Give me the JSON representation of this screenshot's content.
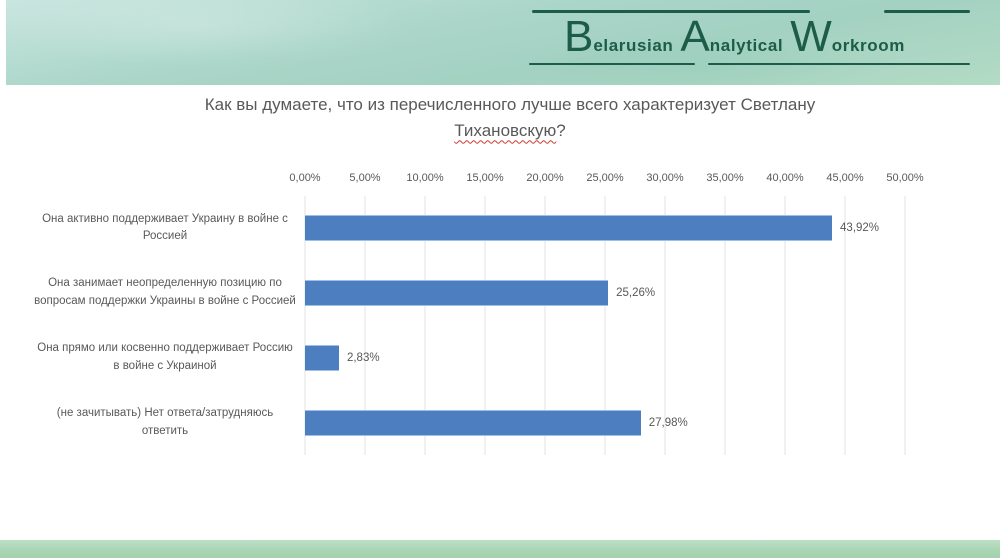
{
  "logo": {
    "words": [
      {
        "initial": "B",
        "rest": "elarusian"
      },
      {
        "initial": "A",
        "rest": "nalytical"
      },
      {
        "initial": "W",
        "rest": "orkroom"
      }
    ],
    "color": "#1c5c49"
  },
  "title": {
    "line1": "Как вы думаете, что из перечисленного лучше всего характеризует Светлану",
    "misspelled_word": "Тихановскую",
    "suffix": "?"
  },
  "chart_data": {
    "type": "bar",
    "orientation": "horizontal",
    "title": "Как вы думаете, что из перечисленного лучше всего характеризует Светлану Тихановскую?",
    "categories": [
      "Она активно поддерживает Украину в войне с Россией",
      "Она занимает неопределенную позицию по вопросам поддержки Украины в войне с Россией",
      "Она прямо или косвенно поддерживает Россию в войне с Украиной",
      "(не зачитывать) Нет ответа/затрудняюсь ответить"
    ],
    "values": [
      43.92,
      25.26,
      2.83,
      27.98
    ],
    "value_labels": [
      "43,92%",
      "25,26%",
      "2,83%",
      "27,98%"
    ],
    "x_ticks": [
      "0,00%",
      "5,00%",
      "10,00%",
      "15,00%",
      "20,00%",
      "25,00%",
      "30,00%",
      "35,00%",
      "40,00%",
      "45,00%",
      "50,00%"
    ],
    "xlim": [
      0,
      50
    ],
    "grid": true,
    "legend": false,
    "bar_color": "#4d7ebf",
    "axis_text_color": "#595959"
  },
  "colors": {
    "header_band_green": "#a8d4c6",
    "footer_band_green": "#a8d5b2",
    "title_gray": "#595959",
    "spellcheck_red": "#cf3b2e"
  }
}
